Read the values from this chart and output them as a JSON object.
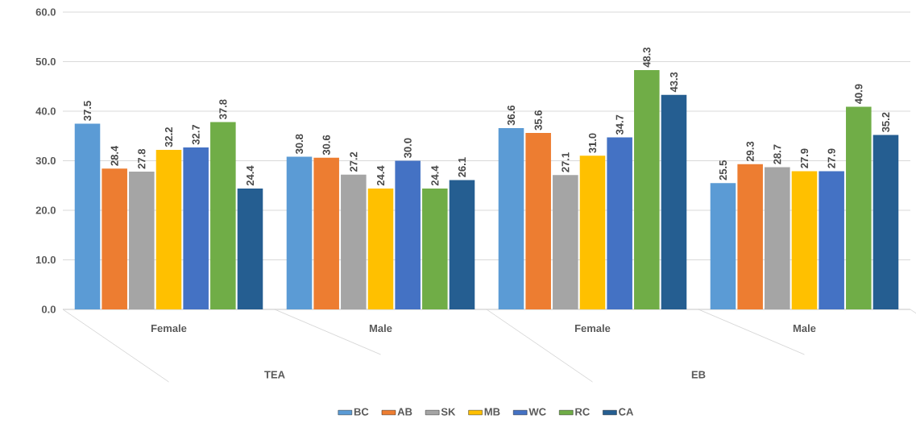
{
  "chart_data": {
    "type": "bar",
    "categories": [
      "Female",
      "Male",
      "Female",
      "Male"
    ],
    "annotations": [
      "TEA",
      "EB"
    ],
    "series": [
      {
        "name": "BC",
        "color": "#5b9bd5",
        "values": [
          37.5,
          30.8,
          36.6,
          25.5
        ],
        "value_labels": [
          "37.5",
          "30.8",
          "36.6",
          "25.5"
        ]
      },
      {
        "name": "AB",
        "color": "#ed7d31",
        "values": [
          28.4,
          30.6,
          35.6,
          29.3
        ],
        "value_labels": [
          "28.4",
          "30.6",
          "35.6",
          "29.3"
        ]
      },
      {
        "name": "SK",
        "color": "#a5a5a5",
        "values": [
          27.8,
          27.2,
          27.1,
          28.7
        ],
        "value_labels": [
          "27.8",
          "27.2",
          "27.1",
          "28.7"
        ]
      },
      {
        "name": "MB",
        "color": "#ffc000",
        "values": [
          32.2,
          24.4,
          31.0,
          27.9
        ],
        "value_labels": [
          "32.2",
          "24.4",
          "31.0",
          "27.9"
        ]
      },
      {
        "name": "WC",
        "color": "#4472c4",
        "values": [
          32.7,
          30.0,
          34.7,
          27.9
        ],
        "value_labels": [
          "32.7",
          "30.0",
          "34.7",
          "27.9"
        ]
      },
      {
        "name": "RC",
        "color": "#70ad47",
        "values": [
          37.8,
          24.4,
          48.3,
          40.9
        ],
        "value_labels": [
          "37.8",
          "24.4",
          "48.3",
          "40.9"
        ]
      },
      {
        "name": "CA",
        "color": "#255e91",
        "values": [
          24.4,
          26.1,
          43.3,
          35.2
        ],
        "value_labels": [
          "24.4",
          "26.1",
          "43.3",
          "35.2"
        ]
      }
    ],
    "ylim": [
      0,
      60
    ],
    "yticks": [
      {
        "value": 0,
        "label": "0.0"
      },
      {
        "value": 10,
        "label": "10.0"
      },
      {
        "value": 20,
        "label": "20.0"
      },
      {
        "value": 30,
        "label": "30.0"
      },
      {
        "value": 40,
        "label": "40.0"
      },
      {
        "value": 50,
        "label": "50.0"
      },
      {
        "value": 60,
        "label": "60.0"
      }
    ],
    "grid": "y",
    "legend": "bottom"
  }
}
